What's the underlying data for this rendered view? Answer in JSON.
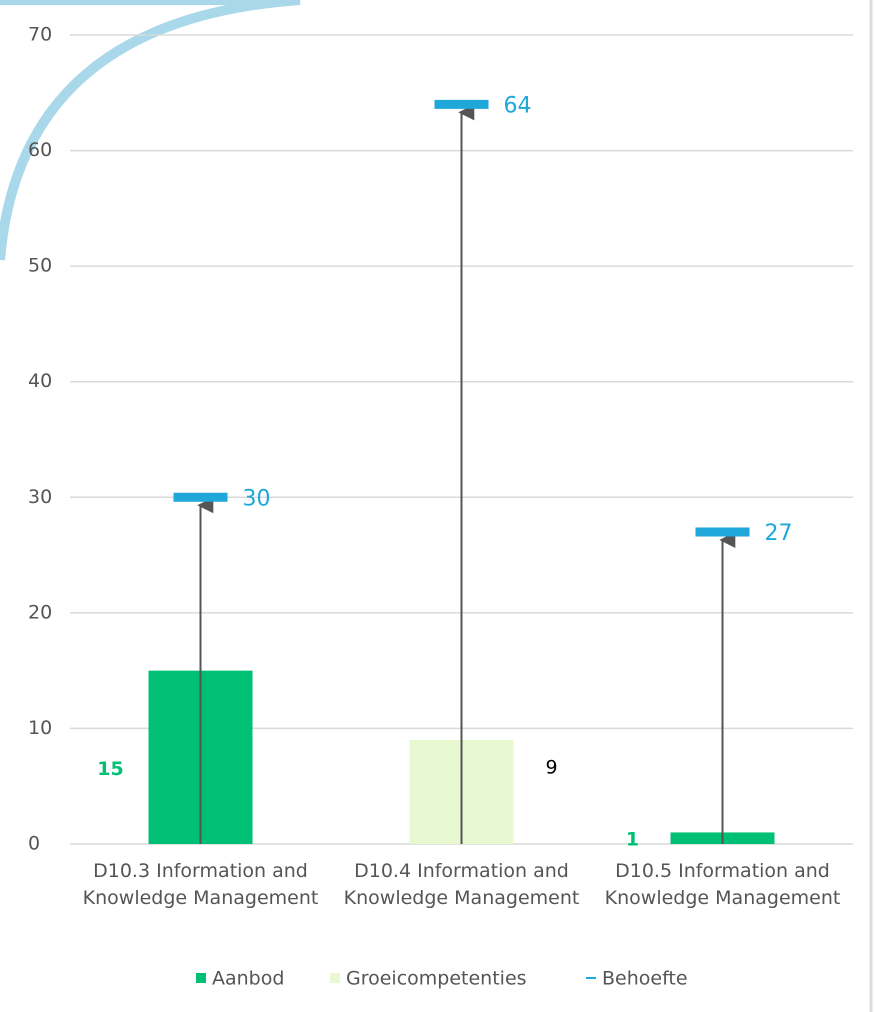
{
  "chart_data": {
    "type": "bar",
    "categories": [
      "D10.3 Information and Knowledge Management",
      "D10.4 Information and Knowledge Management",
      "D10.5 Information and Knowledge Management"
    ],
    "series": [
      {
        "name": "Aanbod",
        "color": "#00c076",
        "values": [
          15,
          null,
          1
        ]
      },
      {
        "name": "Groeicompetenties",
        "color": "#e8f8d0",
        "values": [
          null,
          9,
          null
        ]
      },
      {
        "name": "Behoefte",
        "color": "#1ea7d9",
        "values": [
          30,
          64,
          27
        ]
      }
    ],
    "ylim": [
      0,
      70
    ],
    "yticks": [
      0,
      10,
      20,
      30,
      40,
      50,
      60,
      70
    ],
    "grid": true
  }
}
